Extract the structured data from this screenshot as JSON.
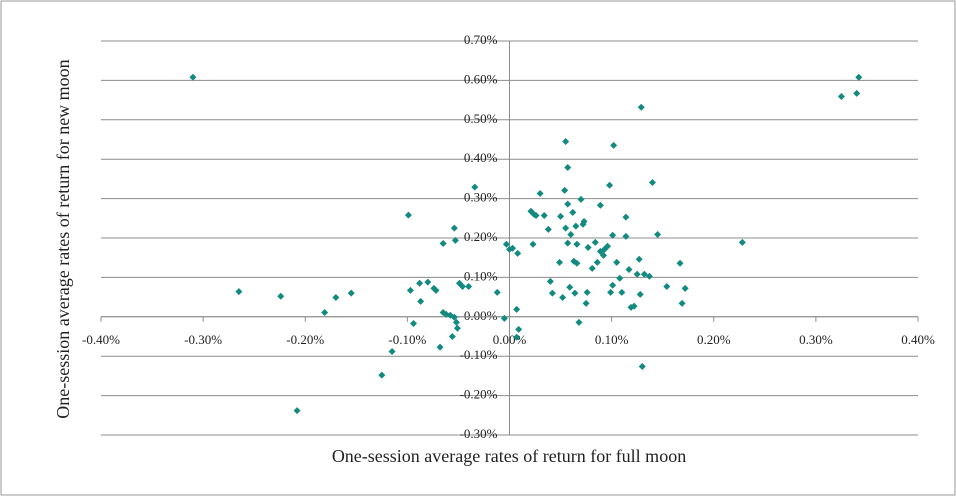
{
  "chart_data": {
    "type": "scatter",
    "x_label": "One-session average rates of return for full moon",
    "y_label": "One-session average rates of return for new moon",
    "color": "#138a80",
    "grid": true,
    "xlim": [
      -0.4,
      0.4
    ],
    "ylim": [
      -0.3,
      0.7
    ],
    "xticks": [
      {
        "value": -0.4,
        "label": "-0.40%"
      },
      {
        "value": -0.3,
        "label": "-0.30%"
      },
      {
        "value": -0.2,
        "label": "-0.20%"
      },
      {
        "value": -0.1,
        "label": "-0.10%"
      },
      {
        "value": 0,
        "label": "0.00%"
      },
      {
        "value": 0.1,
        "label": "0.10%"
      },
      {
        "value": 0.2,
        "label": "0.20%"
      },
      {
        "value": 0.3,
        "label": "0.30%"
      },
      {
        "value": 0.4,
        "label": "0.40%"
      }
    ],
    "yticks": [
      {
        "value": -0.3,
        "label": "-0.30%"
      },
      {
        "value": -0.2,
        "label": "-0.20%"
      },
      {
        "value": -0.1,
        "label": "-0.10%"
      },
      {
        "value": 0,
        "label": "0.00%"
      },
      {
        "value": 0.1,
        "label": "0.10%"
      },
      {
        "value": 0.2,
        "label": "0.20%"
      },
      {
        "value": 0.3,
        "label": "0.30%"
      },
      {
        "value": 0.4,
        "label": "0.40%"
      },
      {
        "value": 0.5,
        "label": "0.50%"
      },
      {
        "value": 0.6,
        "label": "0.60%"
      },
      {
        "value": 0.7,
        "label": "0.70%"
      }
    ],
    "x": [
      -0.31,
      -0.265,
      -0.224,
      -0.208,
      -0.181,
      -0.17,
      -0.155,
      -0.125,
      -0.115,
      -0.099,
      -0.097,
      -0.094,
      -0.088,
      -0.087,
      -0.08,
      -0.074,
      -0.072,
      -0.068,
      -0.065,
      -0.065,
      -0.062,
      -0.058,
      -0.056,
      -0.054,
      -0.053,
      -0.054,
      -0.052,
      -0.051,
      -0.049,
      -0.046,
      -0.04,
      -0.034,
      -0.012,
      -0.005,
      -0.003,
      0.0,
      0.003,
      0.007,
      0.007,
      0.008,
      0.009,
      0.021,
      0.024,
      0.023,
      0.026,
      0.03,
      0.034,
      0.038,
      0.04,
      0.042,
      0.049,
      0.05,
      0.052,
      0.054,
      0.055,
      0.055,
      0.057,
      0.057,
      0.057,
      0.059,
      0.06,
      0.062,
      0.063,
      0.064,
      0.065,
      0.066,
      0.066,
      0.068,
      0.07,
      0.072,
      0.073,
      0.075,
      0.076,
      0.077,
      0.081,
      0.084,
      0.086,
      0.089,
      0.089,
      0.092,
      0.093,
      0.096,
      0.098,
      0.099,
      0.101,
      0.101,
      0.102,
      0.105,
      0.108,
      0.11,
      0.114,
      0.114,
      0.117,
      0.119,
      0.122,
      0.125,
      0.127,
      0.128,
      0.129,
      0.13,
      0.132,
      0.137,
      0.14,
      0.145,
      0.154,
      0.167,
      0.169,
      0.172,
      0.228,
      0.325,
      0.34,
      0.342
    ],
    "y": [
      0.608,
      0.064,
      0.052,
      -0.238,
      0.011,
      0.049,
      0.06,
      -0.148,
      -0.088,
      0.258,
      0.067,
      -0.017,
      0.085,
      0.039,
      0.088,
      0.072,
      0.067,
      -0.077,
      0.186,
      0.011,
      0.006,
      0.004,
      -0.05,
      0.225,
      0.194,
      -0.001,
      -0.014,
      -0.029,
      0.085,
      0.077,
      0.077,
      0.329,
      0.062,
      -0.004,
      0.184,
      0.171,
      0.174,
      -0.052,
      0.019,
      0.161,
      -0.032,
      0.268,
      0.26,
      0.184,
      0.257,
      0.313,
      0.257,
      0.222,
      0.09,
      0.06,
      0.138,
      0.255,
      0.049,
      0.321,
      0.445,
      0.225,
      0.379,
      0.286,
      0.187,
      0.075,
      0.209,
      0.265,
      0.141,
      0.06,
      0.23,
      0.136,
      0.184,
      -0.014,
      0.298,
      0.235,
      0.242,
      0.034,
      0.062,
      0.176,
      0.123,
      0.189,
      0.138,
      0.166,
      0.283,
      0.156,
      0.171,
      0.179,
      0.334,
      0.062,
      0.08,
      0.207,
      0.435,
      0.138,
      0.098,
      0.062,
      0.253,
      0.204,
      0.12,
      0.024,
      0.027,
      0.108,
      0.146,
      0.057,
      0.532,
      -0.126,
      0.108,
      0.103,
      0.341,
      0.209,
      0.077,
      0.136,
      0.034,
      0.072,
      0.189,
      0.559,
      0.567,
      0.608
    ]
  }
}
